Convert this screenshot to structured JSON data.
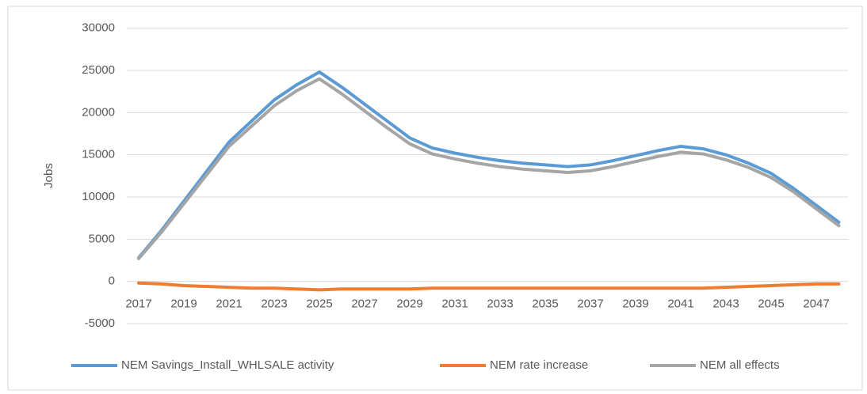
{
  "chart_data": {
    "type": "line",
    "y_label": "Jobs",
    "categories": [
      "2017",
      null,
      "2019",
      null,
      "2021",
      null,
      "2023",
      null,
      "2025",
      null,
      "2027",
      null,
      "2029",
      null,
      "2031",
      null,
      "2033",
      null,
      "2035",
      null,
      "2037",
      null,
      "2039",
      null,
      "2041",
      null,
      "2043",
      null,
      "2045",
      null,
      "2047",
      null
    ],
    "series": [
      {
        "name": "NEM Savings_Install_WHLSALE activity",
        "color": "#5b9bd5",
        "values": [
          2800,
          6000,
          9500,
          13000,
          16500,
          19000,
          21500,
          23300,
          24800,
          23000,
          21000,
          19000,
          17000,
          15800,
          15200,
          14700,
          14300,
          14000,
          13800,
          13600,
          13800,
          14300,
          14900,
          15500,
          16000,
          15700,
          15000,
          14000,
          12800,
          11000,
          9000,
          7000
        ]
      },
      {
        "name": "NEM rate increase",
        "color": "#ed7d31",
        "values": [
          -200,
          -300,
          -500,
          -600,
          -700,
          -800,
          -800,
          -900,
          -1000,
          -900,
          -900,
          -900,
          -900,
          -800,
          -800,
          -800,
          -800,
          -800,
          -800,
          -800,
          -800,
          -800,
          -800,
          -800,
          -800,
          -800,
          -700,
          -600,
          -500,
          -400,
          -300,
          -300
        ]
      },
      {
        "name": "NEM all effects",
        "color": "#a5a5a5",
        "values": [
          2700,
          5800,
          9200,
          12600,
          16000,
          18400,
          20800,
          22600,
          24000,
          22200,
          20200,
          18200,
          16300,
          15100,
          14500,
          14000,
          13600,
          13300,
          13100,
          12900,
          13100,
          13600,
          14200,
          14800,
          15300,
          15100,
          14400,
          13500,
          12300,
          10600,
          8600,
          6600
        ]
      }
    ],
    "ylim": [
      -5000,
      30000
    ],
    "yticks": [
      -5000,
      0,
      5000,
      10000,
      15000,
      20000,
      25000,
      30000
    ],
    "grid": true,
    "legend": "bottom"
  }
}
